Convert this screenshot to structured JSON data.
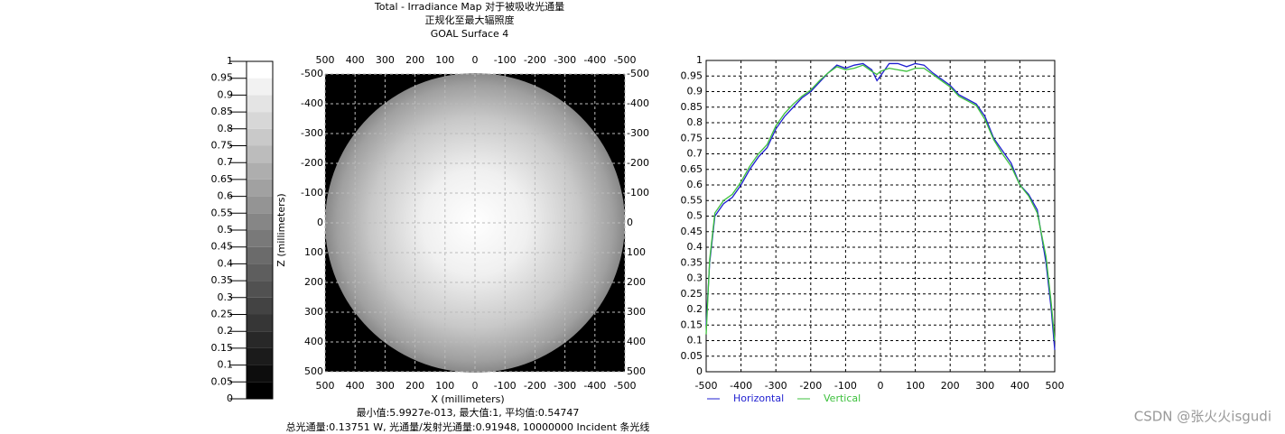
{
  "chart_data": [
    {
      "type": "heatmap",
      "title": [
        "Total - Irradiance Map 对于被吸收光通量",
        "正规化至最大辐照度",
        "GOAL Surface 4"
      ],
      "xlabel": "X (millimeters)",
      "ylabel": "Z (millimeters)",
      "xlim": [
        500,
        -500
      ],
      "xticks": [
        500,
        400,
        300,
        200,
        100,
        0,
        -100,
        -200,
        -300,
        -400,
        -500
      ],
      "ylim": [
        -500,
        500
      ],
      "yticks": [
        -500,
        -400,
        -300,
        -200,
        -100,
        0,
        100,
        200,
        300,
        400,
        500
      ],
      "clim": [
        0,
        1
      ],
      "cticks": [
        0,
        0.05,
        0.1,
        0.15,
        0.2,
        0.25,
        0.3,
        0.35,
        0.4,
        0.45,
        0.5,
        0.55,
        0.6,
        0.65,
        0.7,
        0.75,
        0.8,
        0.85,
        0.9,
        0.95,
        1
      ],
      "grid": true,
      "notes": [
        "最小值:5.9927e-013, 最大值:1, 平均值:0.54747",
        "总光通量:0.13751 W, 光通量/发射光通量:0.91948, 10000000 Incident 条光线"
      ]
    },
    {
      "type": "line",
      "x": [
        -500,
        -490,
        -475,
        -450,
        -425,
        -400,
        -375,
        -350,
        -325,
        -300,
        -275,
        -250,
        -225,
        -200,
        -175,
        -150,
        -125,
        -100,
        -75,
        -50,
        -25,
        -10,
        0,
        25,
        50,
        75,
        100,
        125,
        150,
        175,
        200,
        225,
        250,
        275,
        300,
        325,
        350,
        375,
        400,
        425,
        450,
        475,
        490,
        500
      ],
      "series": [
        {
          "name": "Horizontal",
          "color": "#1f1fd0",
          "values": [
            0.15,
            0.35,
            0.5,
            0.54,
            0.56,
            0.6,
            0.65,
            0.69,
            0.72,
            0.78,
            0.82,
            0.85,
            0.88,
            0.9,
            0.93,
            0.96,
            0.985,
            0.975,
            0.985,
            0.99,
            0.97,
            0.935,
            0.95,
            0.99,
            0.99,
            0.98,
            0.99,
            0.985,
            0.96,
            0.94,
            0.92,
            0.89,
            0.875,
            0.86,
            0.82,
            0.75,
            0.71,
            0.67,
            0.6,
            0.57,
            0.52,
            0.35,
            0.2,
            0.07
          ]
        },
        {
          "name": "Vertical",
          "color": "#3cc03c",
          "values": [
            0.12,
            0.36,
            0.51,
            0.55,
            0.57,
            0.61,
            0.66,
            0.7,
            0.73,
            0.79,
            0.83,
            0.86,
            0.885,
            0.905,
            0.935,
            0.96,
            0.98,
            0.97,
            0.975,
            0.985,
            0.965,
            0.955,
            0.965,
            0.975,
            0.97,
            0.965,
            0.975,
            0.975,
            0.955,
            0.935,
            0.915,
            0.885,
            0.87,
            0.855,
            0.81,
            0.745,
            0.7,
            0.66,
            0.6,
            0.565,
            0.51,
            0.37,
            0.22,
            0.1
          ]
        }
      ],
      "xlim": [
        -500,
        500
      ],
      "xticks": [
        -500,
        -400,
        -300,
        -200,
        -100,
        0,
        100,
        200,
        300,
        400,
        500
      ],
      "ylim": [
        0,
        1
      ],
      "yticks": [
        0,
        0.05,
        0.1,
        0.15,
        0.2,
        0.25,
        0.3,
        0.35,
        0.4,
        0.45,
        0.5,
        0.55,
        0.6,
        0.65,
        0.7,
        0.75,
        0.8,
        0.85,
        0.9,
        0.95,
        1
      ],
      "grid": true
    }
  ],
  "watermark": "CSDN @张火火isgudi"
}
